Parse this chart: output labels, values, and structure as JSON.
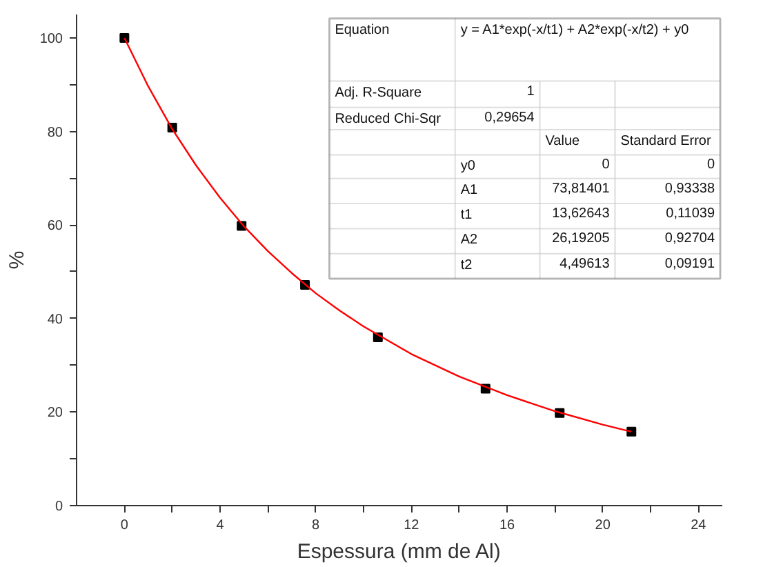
{
  "chart_data": {
    "type": "scatter",
    "xlabel": "Espessura (mm de Al)",
    "ylabel": "%",
    "xlim": [
      -2,
      25
    ],
    "ylim": [
      0,
      105
    ],
    "xticks": [
      0,
      {
        "value": 2,
        "label": null
      },
      4,
      {
        "value": 6,
        "label": null
      },
      8,
      {
        "value": 10,
        "label": null
      },
      12,
      {
        "value": 14,
        "label": null
      },
      16,
      {
        "value": 18,
        "label": null
      },
      20,
      {
        "value": 22,
        "label": null
      },
      24
    ],
    "yticks": [
      0,
      {
        "value": 10,
        "label": null
      },
      20,
      {
        "value": 30,
        "label": null
      },
      40,
      {
        "value": 50,
        "label": null
      },
      60,
      {
        "value": 70,
        "label": null
      },
      80,
      {
        "value": 90,
        "label": null
      },
      100
    ],
    "grid": false,
    "marker": "square",
    "series": [
      {
        "color": "#000000",
        "x": [
          0,
          2,
          4.9,
          7.55,
          10.6,
          15.1,
          18.2,
          21.2
        ],
        "values": [
          100,
          80.8,
          59.8,
          47.2,
          36,
          25,
          19.8,
          15.8
        ]
      },
      {
        "type": "line",
        "color": "#ff0000",
        "line_style": "solid",
        "marker": "none",
        "x": [
          0,
          1,
          2,
          3,
          4,
          5,
          6,
          7,
          8,
          9,
          10,
          12,
          14,
          16,
          18,
          20,
          21.2
        ],
        "values": [
          100,
          89.6,
          80.5,
          72.7,
          65.8,
          59.7,
          54.4,
          49.7,
          45.4,
          41.7,
          38.3,
          32.4,
          27.6,
          23.6,
          20.2,
          17.3,
          15.8
        ]
      }
    ],
    "annotations": [
      "Equation",
      "y = A1*exp(-x/t1) + A2*exp(-x/t2) + y0",
      "Adj. R-Square",
      "1",
      "Reduced Chi-Sqr",
      "0,29654",
      "Value",
      "Standard Error",
      "y0",
      "0",
      "0",
      "A1",
      "73,81401",
      "0,93338",
      "t1",
      "13,62643",
      "0,11039",
      "A2",
      "26,19205",
      "0,92704",
      "t2",
      "4,49613",
      "0,09191"
    ]
  }
}
